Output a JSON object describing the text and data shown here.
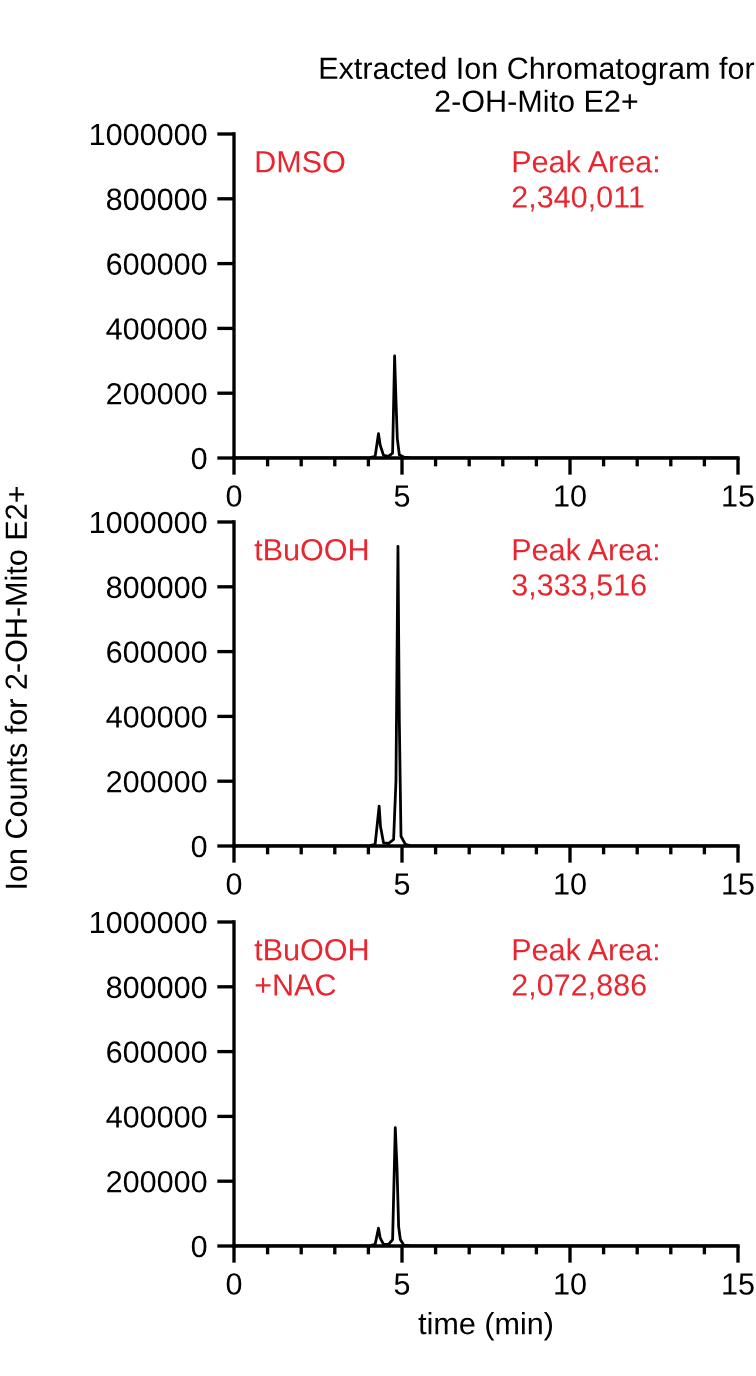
{
  "chart_data": [
    {
      "type": "line",
      "title": "Extracted Ion Chromatogram for\n2-OH-Mito E2+",
      "annotations": [
        "DMSO",
        "Peak Area:\n2,340,011"
      ],
      "series": [
        {
          "color": "#000000",
          "x": [
            0,
            4.0,
            4.2,
            4.3,
            4.35,
            4.45,
            4.6,
            4.72,
            4.78,
            4.82,
            4.86,
            4.92,
            5.05,
            5.3,
            15
          ],
          "values": [
            0,
            0,
            5000,
            75000,
            40000,
            8000,
            5000,
            15000,
            315000,
            180000,
            60000,
            10000,
            3000,
            0,
            0
          ]
        }
      ],
      "xlim": [
        0,
        15
      ],
      "xticks": [
        0,
        5,
        10,
        15
      ],
      "ylim": [
        0,
        1000000
      ],
      "yticks": [
        0,
        200000,
        400000,
        600000,
        800000,
        1000000
      ],
      "grid": false,
      "legend": false,
      "marker": "none",
      "line_style": "solid"
    },
    {
      "type": "line",
      "ylabel": "Ion Counts for 2-OH-Mito E2+",
      "annotations": [
        "tBuOOH",
        "Peak Area:\n3,333,516"
      ],
      "series": [
        {
          "color": "#000000",
          "x": [
            0,
            4.0,
            4.2,
            4.32,
            4.36,
            4.45,
            4.6,
            4.75,
            4.82,
            4.88,
            4.92,
            4.97,
            5.1,
            5.3,
            15
          ],
          "values": [
            0,
            0,
            5000,
            123000,
            60000,
            10000,
            8000,
            20000,
            200000,
            925000,
            390000,
            30000,
            5000,
            0,
            0
          ]
        }
      ],
      "xlim": [
        0,
        15
      ],
      "xticks": [
        0,
        5,
        10,
        15
      ],
      "ylim": [
        0,
        1000000
      ],
      "yticks": [
        0,
        200000,
        400000,
        600000,
        800000,
        1000000
      ],
      "grid": false,
      "legend": false,
      "marker": "none",
      "line_style": "solid"
    },
    {
      "type": "line",
      "xlabel": "time (min)",
      "annotations": [
        "tBuOOH\n+NAC",
        "Peak Area:\n2,072,886"
      ],
      "series": [
        {
          "color": "#000000",
          "x": [
            0,
            4.0,
            4.2,
            4.3,
            4.35,
            4.45,
            4.6,
            4.72,
            4.8,
            4.85,
            4.9,
            4.95,
            5.05,
            5.3,
            15
          ],
          "values": [
            0,
            0,
            5000,
            55000,
            25000,
            5000,
            5000,
            20000,
            365000,
            245000,
            60000,
            20000,
            3000,
            0,
            0
          ]
        }
      ],
      "xlim": [
        0,
        15
      ],
      "xticks": [
        0,
        5,
        10,
        15
      ],
      "ylim": [
        0,
        1000000
      ],
      "yticks": [
        0,
        200000,
        400000,
        600000,
        800000,
        1000000
      ],
      "grid": false,
      "legend": false,
      "marker": "none",
      "line_style": "solid"
    }
  ]
}
